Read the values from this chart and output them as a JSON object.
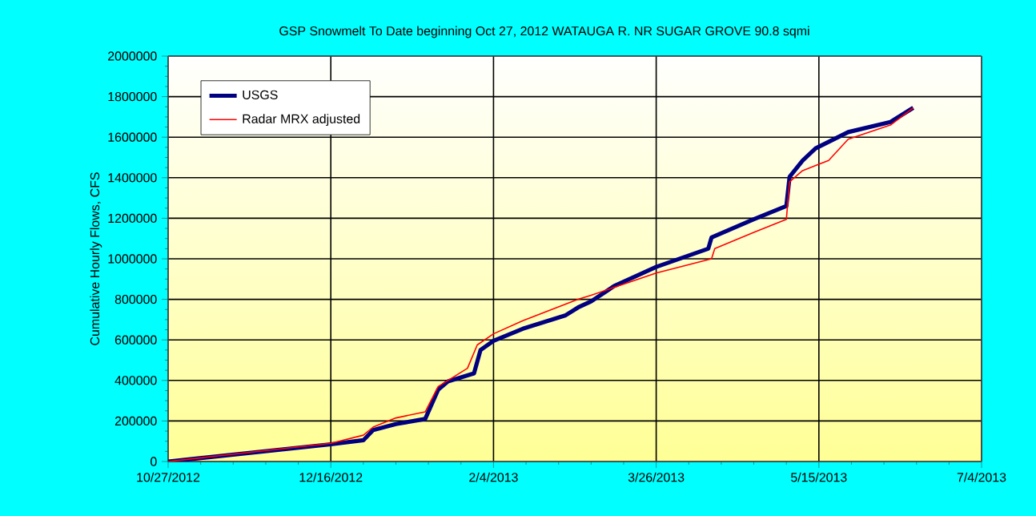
{
  "chart_data": {
    "type": "line",
    "title": "GSP Snowmelt To Date beginning Oct 27, 2012 WATAUGA R. NR SUGAR GROVE 90.8 sqmi",
    "ylabel": "Cumulative Hourly Flows, CFS",
    "xlim": [
      "2012-10-27",
      "2013-07-04"
    ],
    "xticks": [
      {
        "value": "2012-10-27",
        "label": "10/27/2012"
      },
      {
        "value": "2012-12-16",
        "label": "12/16/2012"
      },
      {
        "value": "2013-02-04",
        "label": "2/4/2013"
      },
      {
        "value": "2013-03-26",
        "label": "3/26/2013"
      },
      {
        "value": "2013-05-15",
        "label": "5/15/2013"
      },
      {
        "value": "2013-07-04",
        "label": "7/4/2013"
      }
    ],
    "ylim": [
      0,
      2000000
    ],
    "yticks": [
      0,
      200000,
      400000,
      600000,
      800000,
      1000000,
      1200000,
      1400000,
      1600000,
      1800000,
      2000000
    ],
    "grid": true,
    "legend": "top left",
    "marker": "none",
    "line_style": "solid",
    "series": [
      {
        "name": "USGS",
        "color": "#000080",
        "x": [
          "2012-10-27",
          "2012-12-16",
          "2012-12-26",
          "2012-12-29",
          "2013-01-05",
          "2013-01-14",
          "2013-01-18",
          "2013-01-21",
          "2013-01-29",
          "2013-01-31",
          "2013-02-04",
          "2013-02-13",
          "2013-02-26",
          "2013-03-02",
          "2013-03-06",
          "2013-03-13",
          "2013-03-26",
          "2013-04-11",
          "2013-04-12",
          "2013-04-25",
          "2013-05-05",
          "2013-05-06",
          "2013-05-10",
          "2013-05-14",
          "2013-05-24",
          "2013-06-06",
          "2013-06-13"
        ],
        "values": [
          0,
          85000,
          105000,
          155000,
          185000,
          210000,
          355000,
          395000,
          435000,
          550000,
          595000,
          655000,
          720000,
          760000,
          790000,
          865000,
          960000,
          1050000,
          1105000,
          1195000,
          1260000,
          1405000,
          1485000,
          1545000,
          1625000,
          1675000,
          1745000
        ]
      },
      {
        "name": "Radar MRX adjusted",
        "color": "#ff0000",
        "x": [
          "2012-10-27",
          "2012-12-16",
          "2012-12-26",
          "2012-12-29",
          "2013-01-05",
          "2013-01-14",
          "2013-01-18",
          "2013-01-27",
          "2013-01-30",
          "2013-02-04",
          "2013-02-13",
          "2013-03-02",
          "2013-03-06",
          "2013-03-26",
          "2013-04-12",
          "2013-04-13",
          "2013-04-25",
          "2013-05-05",
          "2013-05-06",
          "2013-05-10",
          "2013-05-18",
          "2013-05-24",
          "2013-06-06",
          "2013-06-13"
        ],
        "values": [
          0,
          90000,
          130000,
          170000,
          215000,
          245000,
          370000,
          460000,
          575000,
          630000,
          695000,
          800000,
          820000,
          930000,
          1000000,
          1050000,
          1130000,
          1195000,
          1380000,
          1435000,
          1485000,
          1590000,
          1660000,
          1745000
        ]
      }
    ]
  }
}
